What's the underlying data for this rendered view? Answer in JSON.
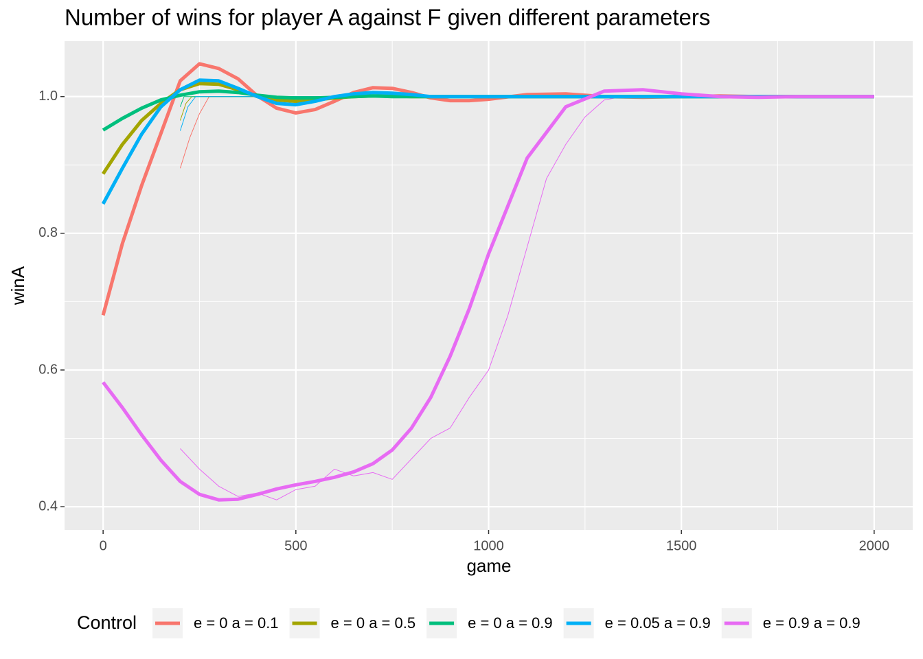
{
  "chart_data": {
    "type": "line",
    "title": "Number of wins for player A against F given different parameters",
    "x_label": "game",
    "y_label": "winA",
    "legend_title": "Control",
    "xlim": [
      -100,
      2100
    ],
    "ylim": [
      0.366,
      1.081
    ],
    "xticks": [
      0,
      500,
      1000,
      1500,
      2000
    ],
    "yticks": [
      0.4,
      0.6,
      0.8,
      {
        "value": 1,
        "label": "1.0"
      }
    ],
    "x_minor_grid": [
      250,
      750,
      1250,
      1750
    ],
    "y_minor_grid": [
      0.5,
      0.7,
      0.9
    ],
    "grid": true,
    "legend_position": "bottom",
    "x": [
      0,
      50,
      100,
      150,
      200,
      250,
      300,
      350,
      400,
      450,
      500,
      550,
      600,
      650,
      700,
      750,
      800,
      850,
      900,
      950,
      1000,
      1100,
      1200,
      1300,
      1400,
      1500,
      1600,
      1700,
      1800,
      1900,
      2000
    ],
    "series": [
      {
        "name": "e = 0 a = 0.1",
        "color": "#f8766d",
        "values": [
          0.68,
          0.785,
          0.87,
          0.946,
          1.023,
          1.048,
          1.041,
          1.026,
          1.001,
          0.983,
          0.976,
          0.981,
          0.993,
          1.006,
          1.013,
          1.012,
          1.006,
          0.998,
          0.994,
          0.994,
          0.996,
          1.003,
          1.004,
          1.0,
          0.999,
          1.0,
          1.001,
          1.0,
          1.0,
          1.0,
          1.0
        ],
        "raw_x": [
          200,
          225,
          250,
          275,
          300,
          2000
        ],
        "raw_values": [
          0.895,
          0.94,
          0.975,
          1.0,
          1.0,
          1.0
        ]
      },
      {
        "name": "e = 0 a = 0.5",
        "color": "#a3a500",
        "values": [
          0.887,
          0.93,
          0.965,
          0.99,
          1.01,
          1.019,
          1.018,
          1.01,
          1.0,
          0.995,
          0.993,
          0.995,
          0.998,
          1.0,
          1.001,
          1.001,
          1.0,
          1.0,
          1.0,
          1.0,
          1.0,
          1.0,
          1.0,
          1.0,
          1.0,
          1.0,
          1.0,
          1.0,
          1.0,
          1.0,
          1.0
        ],
        "raw_x": [
          200,
          215,
          230,
          2000
        ],
        "raw_values": [
          0.965,
          0.99,
          1.0,
          1.0
        ]
      },
      {
        "name": "e = 0 a = 0.9",
        "color": "#00bf7d",
        "values": [
          0.951,
          0.968,
          0.983,
          0.995,
          1.002,
          1.007,
          1.008,
          1.006,
          1.002,
          0.999,
          0.998,
          0.998,
          0.999,
          1.0,
          1.001,
          1.0,
          1.0,
          1.0,
          1.0,
          1.0,
          1.0,
          1.0,
          1.0,
          1.0,
          1.0,
          1.0,
          1.0,
          1.0,
          1.0,
          1.0,
          1.0
        ],
        "raw_x": [
          200,
          210,
          2000
        ],
        "raw_values": [
          0.985,
          1.0,
          1.0
        ]
      },
      {
        "name": "e = 0.05 a = 0.9",
        "color": "#00b0f6",
        "values": [
          0.843,
          0.895,
          0.945,
          0.985,
          1.01,
          1.024,
          1.023,
          1.012,
          1.0,
          0.99,
          0.988,
          0.993,
          1.0,
          1.004,
          1.006,
          1.005,
          1.003,
          1.0,
          1.0,
          1.0,
          1.0,
          1.0,
          1.0,
          1.0,
          1.0,
          1.0,
          1.0,
          1.0,
          1.0,
          1.0,
          1.0
        ],
        "raw_x": [
          200,
          220,
          240,
          2000
        ],
        "raw_values": [
          0.95,
          0.985,
          1.0,
          1.0
        ]
      },
      {
        "name": "e = 0.9 a = 0.9",
        "color": "#e76bf3",
        "values": [
          0.582,
          0.545,
          0.505,
          0.468,
          0.437,
          0.418,
          0.41,
          0.411,
          0.418,
          0.426,
          0.432,
          0.437,
          0.443,
          0.451,
          0.463,
          0.483,
          0.515,
          0.56,
          0.62,
          0.69,
          0.77,
          0.91,
          0.985,
          1.008,
          1.01,
          1.004,
          1.0,
          0.999,
          1.0,
          1.0,
          1.0
        ],
        "raw_x": [
          200,
          250,
          300,
          350,
          400,
          450,
          500,
          550,
          600,
          650,
          700,
          750,
          800,
          850,
          900,
          950,
          1000,
          1050,
          1100,
          1150,
          1200,
          1250,
          1300,
          1350,
          2000
        ],
        "raw_values": [
          0.485,
          0.455,
          0.43,
          0.415,
          0.42,
          0.41,
          0.425,
          0.43,
          0.455,
          0.445,
          0.45,
          0.44,
          0.47,
          0.5,
          0.515,
          0.56,
          0.6,
          0.68,
          0.78,
          0.88,
          0.93,
          0.97,
          0.995,
          1.0,
          1.0
        ]
      }
    ]
  }
}
